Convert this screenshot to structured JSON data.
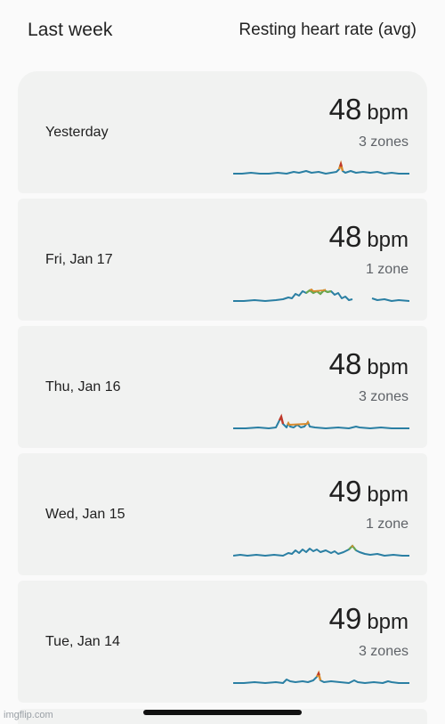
{
  "header": {
    "left_title": "Last week",
    "right_title": "Resting heart rate (avg)"
  },
  "days": [
    {
      "label": "Yesterday",
      "bpm": "48",
      "unit": "bpm",
      "zones": "3 zones"
    },
    {
      "label": "Fri, Jan 17",
      "bpm": "48",
      "unit": "bpm",
      "zones": "1 zone"
    },
    {
      "label": "Thu, Jan 16",
      "bpm": "48",
      "unit": "bpm",
      "zones": "3 zones"
    },
    {
      "label": "Wed, Jan 15",
      "bpm": "49",
      "unit": "bpm",
      "zones": "1 zone"
    },
    {
      "label": "Tue, Jan 14",
      "bpm": "49",
      "unit": "bpm",
      "zones": "3 zones"
    }
  ],
  "colors": {
    "line": "#2a7fa3",
    "zone_orange": "#d98a2b",
    "zone_red": "#c0392b",
    "zone_green": "#6aa84f"
  },
  "watermark": "imgflip.com"
}
